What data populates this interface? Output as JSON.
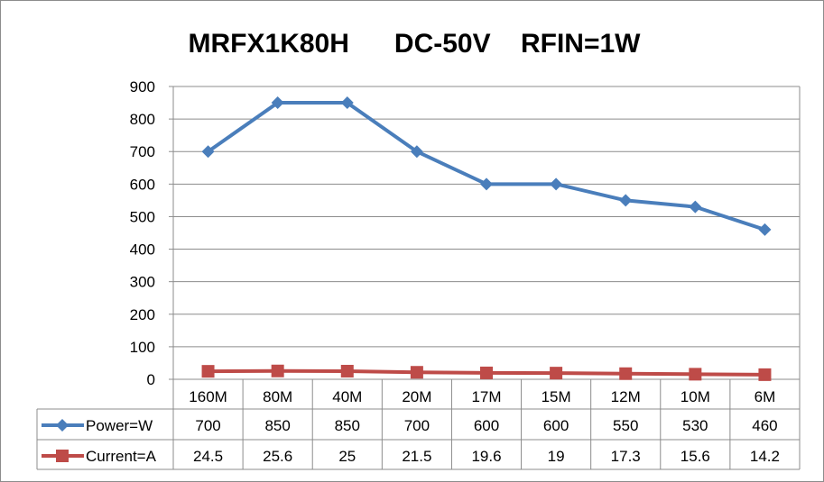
{
  "chart_data": {
    "type": "line",
    "title": "MRFX1K80H      DC-50V    RFIN=1W",
    "categories": [
      "160M",
      "80M",
      "40M",
      "20M",
      "17M",
      "15M",
      "12M",
      "10M",
      "6M"
    ],
    "ylim": [
      0,
      900
    ],
    "yticks": [
      "0",
      "100",
      "200",
      "300",
      "400",
      "500",
      "600",
      "700",
      "800",
      "900"
    ],
    "grid": true,
    "legend": "data-table",
    "series": [
      {
        "name": "Power=W",
        "color": "#4a7ebb",
        "marker": "diamond",
        "values": [
          700,
          850,
          850,
          700,
          600,
          600,
          550,
          530,
          460
        ],
        "labels": [
          "700",
          "850",
          "850",
          "700",
          "600",
          "600",
          "550",
          "530",
          "460"
        ]
      },
      {
        "name": "Current=A",
        "color": "#be4b48",
        "marker": "square",
        "values": [
          24.5,
          25.6,
          25,
          21.5,
          19.6,
          19,
          17.3,
          15.6,
          14.2
        ],
        "labels": [
          "24.5",
          "25.6",
          "25",
          "21.5",
          "19.6",
          "19",
          "17.3",
          "15.6",
          "14.2"
        ]
      }
    ]
  }
}
